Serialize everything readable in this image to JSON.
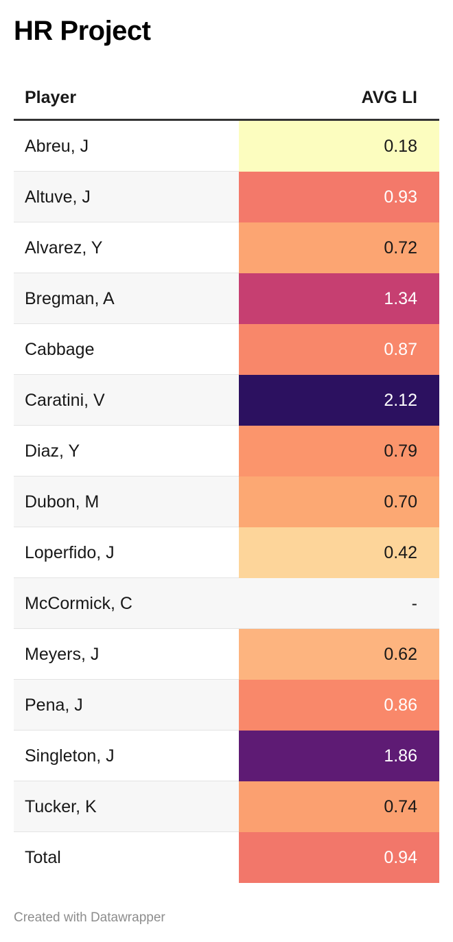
{
  "title": "HR Project",
  "footer": "Created with Datawrapper",
  "chart_data": {
    "type": "table",
    "columns": [
      "Player",
      "AVG LI"
    ],
    "rows": [
      {
        "player": "Abreu, J",
        "value": "0.18",
        "bg": "#fcfdbf",
        "fg": "#181818"
      },
      {
        "player": "Altuve, J",
        "value": "0.93",
        "bg": "#f3796a",
        "fg": "#ffffff"
      },
      {
        "player": "Alvarez, Y",
        "value": "0.72",
        "bg": "#fca572",
        "fg": "#181818"
      },
      {
        "player": "Bregman, A",
        "value": "1.34",
        "bg": "#c63f71",
        "fg": "#ffffff"
      },
      {
        "player": "Cabbage",
        "value": "0.87",
        "bg": "#f8876a",
        "fg": "#ffffff"
      },
      {
        "player": "Caratini, V",
        "value": "2.12",
        "bg": "#2c1160",
        "fg": "#ffffff"
      },
      {
        "player": "Diaz, Y",
        "value": "0.79",
        "bg": "#fb956c",
        "fg": "#181818"
      },
      {
        "player": "Dubon, M",
        "value": "0.70",
        "bg": "#fca873",
        "fg": "#181818"
      },
      {
        "player": "Loperfido, J",
        "value": "0.42",
        "bg": "#fdd59a",
        "fg": "#181818"
      },
      {
        "player": "McCormick, C",
        "value": "-",
        "bg": "",
        "fg": "#181818"
      },
      {
        "player": "Meyers, J",
        "value": "0.62",
        "bg": "#fdb47f",
        "fg": "#181818"
      },
      {
        "player": "Pena, J",
        "value": "0.86",
        "bg": "#f9886a",
        "fg": "#ffffff"
      },
      {
        "player": "Singleton, J",
        "value": "1.86",
        "bg": "#5e1b74",
        "fg": "#ffffff"
      },
      {
        "player": "Tucker, K",
        "value": "0.74",
        "bg": "#fba070",
        "fg": "#181818"
      },
      {
        "player": "Total",
        "value": "0.94",
        "bg": "#f2776a",
        "fg": "#ffffff"
      }
    ]
  }
}
